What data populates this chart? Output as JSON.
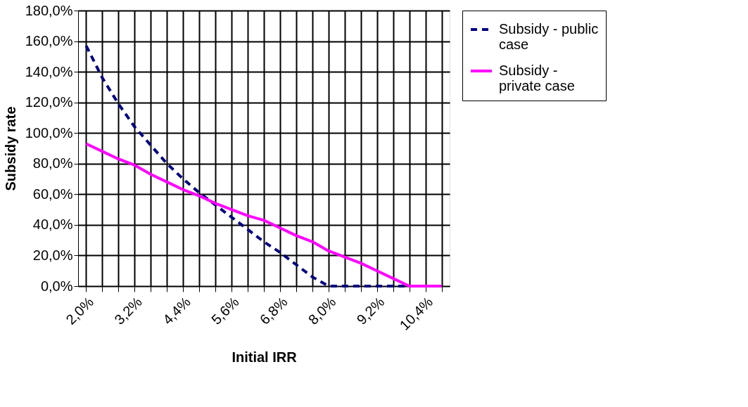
{
  "chart_data": {
    "type": "line",
    "xlabel": "Initial IRR",
    "ylabel": "Subsidy rate",
    "categories": [
      "2,0%",
      null,
      null,
      "3,2%",
      null,
      null,
      "4,4%",
      null,
      null,
      "5,6%",
      null,
      null,
      "6,8%",
      null,
      null,
      "8,0%",
      null,
      null,
      "9,2%",
      null,
      null,
      "10,4%",
      null
    ],
    "series": [
      {
        "name": "Subsidy - public case",
        "color": "#000080",
        "line_style": "dashed",
        "values": [
          157,
          136,
          119,
          104,
          92,
          80,
          70,
          61,
          53,
          45,
          37,
          29,
          22,
          14,
          6,
          0,
          0,
          0,
          0,
          0,
          0,
          0,
          0
        ]
      },
      {
        "name": "Subsidy - private case",
        "color": "#ff00ff",
        "line_style": "solid",
        "values": [
          93,
          88,
          83,
          79,
          73,
          68,
          63,
          59,
          54,
          50,
          46,
          43,
          38,
          33,
          29,
          23,
          19,
          15,
          10,
          5,
          0,
          0,
          0
        ]
      }
    ],
    "ylim": [
      0,
      180
    ],
    "yticks": [
      {
        "value": 0,
        "label": "0,0%"
      },
      {
        "value": 20,
        "label": "20,0%"
      },
      {
        "value": 40,
        "label": "40,0%"
      },
      {
        "value": 60,
        "label": "60,0%"
      },
      {
        "value": 80,
        "label": "80,0%"
      },
      {
        "value": 100,
        "label": "100,0%"
      },
      {
        "value": 120,
        "label": "120,0%"
      },
      {
        "value": 140,
        "label": "140,0%"
      },
      {
        "value": 160,
        "label": "160,0%"
      },
      {
        "value": 180,
        "label": "180,0%"
      }
    ],
    "grid": true,
    "legend": "right",
    "marker": "none"
  }
}
